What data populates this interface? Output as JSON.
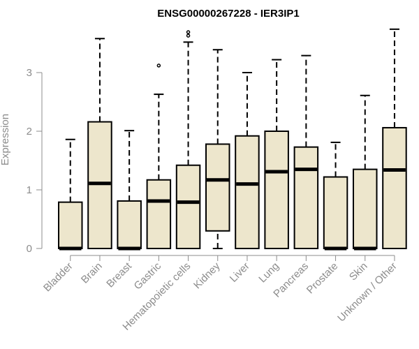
{
  "chart_data": {
    "type": "boxplot",
    "title": "ENSG00000267228 - IER3IP1",
    "xlabel": "",
    "ylabel": "Expression",
    "ylim": [
      0,
      3.9
    ],
    "yticks": [
      0,
      1,
      2,
      3
    ],
    "grid": false,
    "legend": "none",
    "box_fill": "#ede6cc",
    "box_stroke": "#000000",
    "axis_color": "#8c8c8c",
    "categories": [
      "Bladder",
      "Brain",
      "Breast",
      "Gastric",
      "Hematopoietic cells",
      "Kidney",
      "Liver",
      "Lung",
      "Pancreas",
      "Prostate",
      "Skin",
      "Unknown / Other"
    ],
    "boxes": [
      {
        "min": 0.0,
        "q1": 0.0,
        "median": 0.0,
        "q3": 0.79,
        "max": 1.86,
        "outliers": []
      },
      {
        "min": 0.0,
        "q1": 0.0,
        "median": 1.11,
        "q3": 2.16,
        "max": 3.58,
        "outliers": []
      },
      {
        "min": 0.0,
        "q1": 0.0,
        "median": 0.0,
        "q3": 0.81,
        "max": 2.01,
        "outliers": []
      },
      {
        "min": 0.0,
        "q1": 0.0,
        "median": 0.81,
        "q3": 1.17,
        "max": 2.63,
        "outliers": [
          3.12
        ]
      },
      {
        "min": 0.0,
        "q1": 0.0,
        "median": 0.79,
        "q3": 1.42,
        "max": 3.52,
        "outliers": [
          3.63,
          3.69
        ]
      },
      {
        "min": 0.0,
        "q1": 0.3,
        "median": 1.17,
        "q3": 1.78,
        "max": 3.39,
        "outliers": []
      },
      {
        "min": 0.0,
        "q1": 0.0,
        "median": 1.1,
        "q3": 1.92,
        "max": 3.0,
        "outliers": []
      },
      {
        "min": 0.0,
        "q1": 0.0,
        "median": 1.31,
        "q3": 2.0,
        "max": 3.22,
        "outliers": []
      },
      {
        "min": 0.0,
        "q1": 0.0,
        "median": 1.35,
        "q3": 1.73,
        "max": 3.29,
        "outliers": []
      },
      {
        "min": 0.0,
        "q1": 0.0,
        "median": 0.0,
        "q3": 1.22,
        "max": 1.81,
        "outliers": []
      },
      {
        "min": 0.0,
        "q1": 0.0,
        "median": 0.0,
        "q3": 1.35,
        "max": 2.61,
        "outliers": []
      },
      {
        "min": 0.0,
        "q1": 0.0,
        "median": 1.34,
        "q3": 2.06,
        "max": 3.74,
        "outliers": []
      }
    ]
  }
}
